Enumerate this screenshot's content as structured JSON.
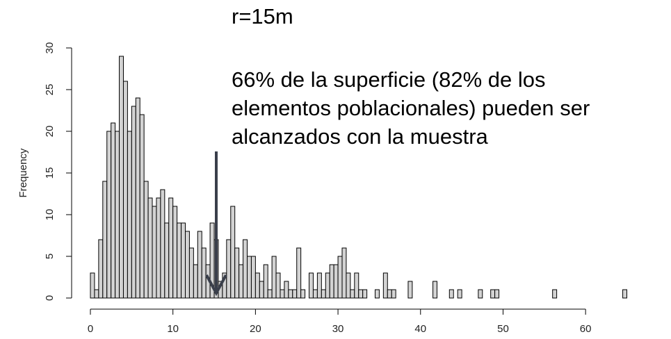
{
  "chart_data": {
    "type": "histogram",
    "title": "r=15m",
    "annotation": [
      "66% de la superficie (82% de los",
      "elementos poblacionales) pueden ser",
      "alcanzados con la muestra"
    ],
    "ylabel": "Frequency",
    "bins": [
      0,
      0.5,
      1,
      1.5,
      2,
      2.5,
      3,
      3.5,
      4,
      4.5,
      5,
      5.5,
      6,
      6.5,
      7,
      7.5,
      8,
      8.5,
      9,
      9.5,
      10,
      10.5,
      11,
      11.5,
      12,
      12.5,
      13,
      13.5,
      14,
      14.5,
      15,
      15.5,
      16,
      16.5,
      17,
      17.5,
      18,
      18.5,
      19,
      19.5,
      20,
      20.5,
      21,
      21.5,
      22,
      22.5,
      23,
      23.5,
      24,
      24.5,
      25,
      25.5,
      26,
      26.5,
      27,
      27.5,
      28,
      28.5,
      29,
      29.5,
      30,
      30.5,
      31,
      31.5,
      32,
      32.5,
      33,
      33.5,
      34,
      34.5,
      35,
      35.5,
      36,
      36.5,
      37,
      37.5,
      38,
      38.5,
      39,
      39.5,
      40,
      40.5,
      41,
      41.5,
      42,
      42.5,
      43,
      43.5,
      44,
      44.5,
      45,
      45.5,
      46,
      46.5,
      47,
      47.5,
      48,
      48.5,
      49,
      49.5,
      50,
      50.5,
      51,
      51.5,
      52,
      52.5,
      53,
      53.5,
      54,
      54.5,
      55,
      55.5,
      56,
      56.5,
      57,
      57.5,
      58,
      58.5,
      59,
      59.5,
      60,
      60.5,
      61,
      61.5,
      62,
      62.5,
      63,
      63.5,
      64,
      64.5,
      65
    ],
    "values": [
      3,
      1,
      7,
      14,
      20,
      21,
      20,
      29,
      26,
      20,
      23,
      24,
      22,
      14,
      12,
      11,
      12,
      13,
      9,
      12,
      11,
      9,
      9,
      8,
      6,
      4,
      8,
      6,
      4,
      9,
      7,
      2,
      3,
      7,
      11,
      6,
      4,
      7,
      5,
      5,
      3,
      2,
      4,
      1,
      5,
      3,
      1,
      2,
      1,
      1,
      6,
      1,
      0,
      3,
      1,
      3,
      1,
      3,
      4,
      4,
      5,
      6,
      3,
      1,
      3,
      1,
      1,
      0,
      0,
      1,
      0,
      3,
      1,
      1,
      0,
      0,
      0,
      2,
      0,
      0,
      0,
      0,
      0,
      2,
      0,
      0,
      0,
      1,
      0,
      1,
      0,
      0,
      0,
      0,
      1,
      0,
      0,
      1,
      1,
      0,
      0,
      0,
      0,
      0,
      0,
      0,
      0,
      0,
      0,
      0,
      0,
      0,
      1,
      0,
      0,
      0,
      0,
      0,
      0,
      0,
      0,
      0,
      0,
      0,
      0,
      0,
      0,
      0,
      0,
      1
    ],
    "color": "#d3d3d3",
    "xlim": [
      0,
      65
    ],
    "xticks": [
      0,
      10,
      20,
      30,
      40,
      50,
      60
    ],
    "ylim": [
      0,
      30
    ],
    "yticks": [
      0,
      5,
      10,
      15,
      20,
      25,
      30
    ]
  }
}
